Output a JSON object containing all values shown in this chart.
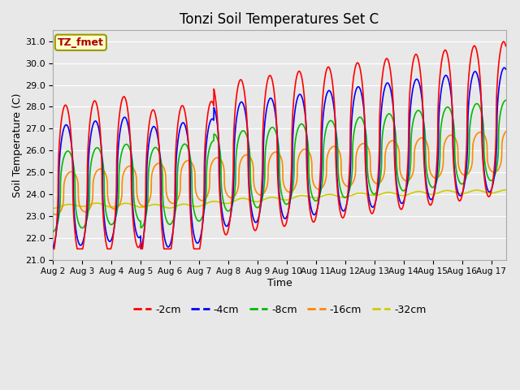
{
  "title": "Tonzi Soil Temperatures Set C",
  "xlabel": "Time",
  "ylabel": "Soil Temperature (C)",
  "ylim": [
    21.0,
    31.5
  ],
  "yticks": [
    21.0,
    22.0,
    23.0,
    24.0,
    25.0,
    26.0,
    27.0,
    28.0,
    29.0,
    30.0,
    31.0
  ],
  "bg_color": "#e8e8e8",
  "plot_bg_color": "#e8e8e8",
  "grid_color": "#ffffff",
  "legend_label": "TZ_fmet",
  "legend_box_bg": "#ffffcc",
  "legend_box_edge": "#999900",
  "legend_text_color": "#aa0000",
  "series_colors": {
    "-2cm": "#ff0000",
    "-4cm": "#0000ff",
    "-8cm": "#00bb00",
    "-16cm": "#ff8800",
    "-32cm": "#cccc00"
  },
  "xtick_labels": [
    "Aug 2",
    "Aug 3",
    "Aug 4",
    "Aug 5",
    "Aug 6",
    "Aug 7",
    "Aug 8",
    "Aug 9",
    "Aug 10",
    "Aug 11",
    "Aug 12",
    "Aug 13",
    "Aug 14",
    "Aug 15",
    "Aug 16",
    "Aug 17"
  ],
  "n_days": 15.5,
  "lw": 1.2
}
